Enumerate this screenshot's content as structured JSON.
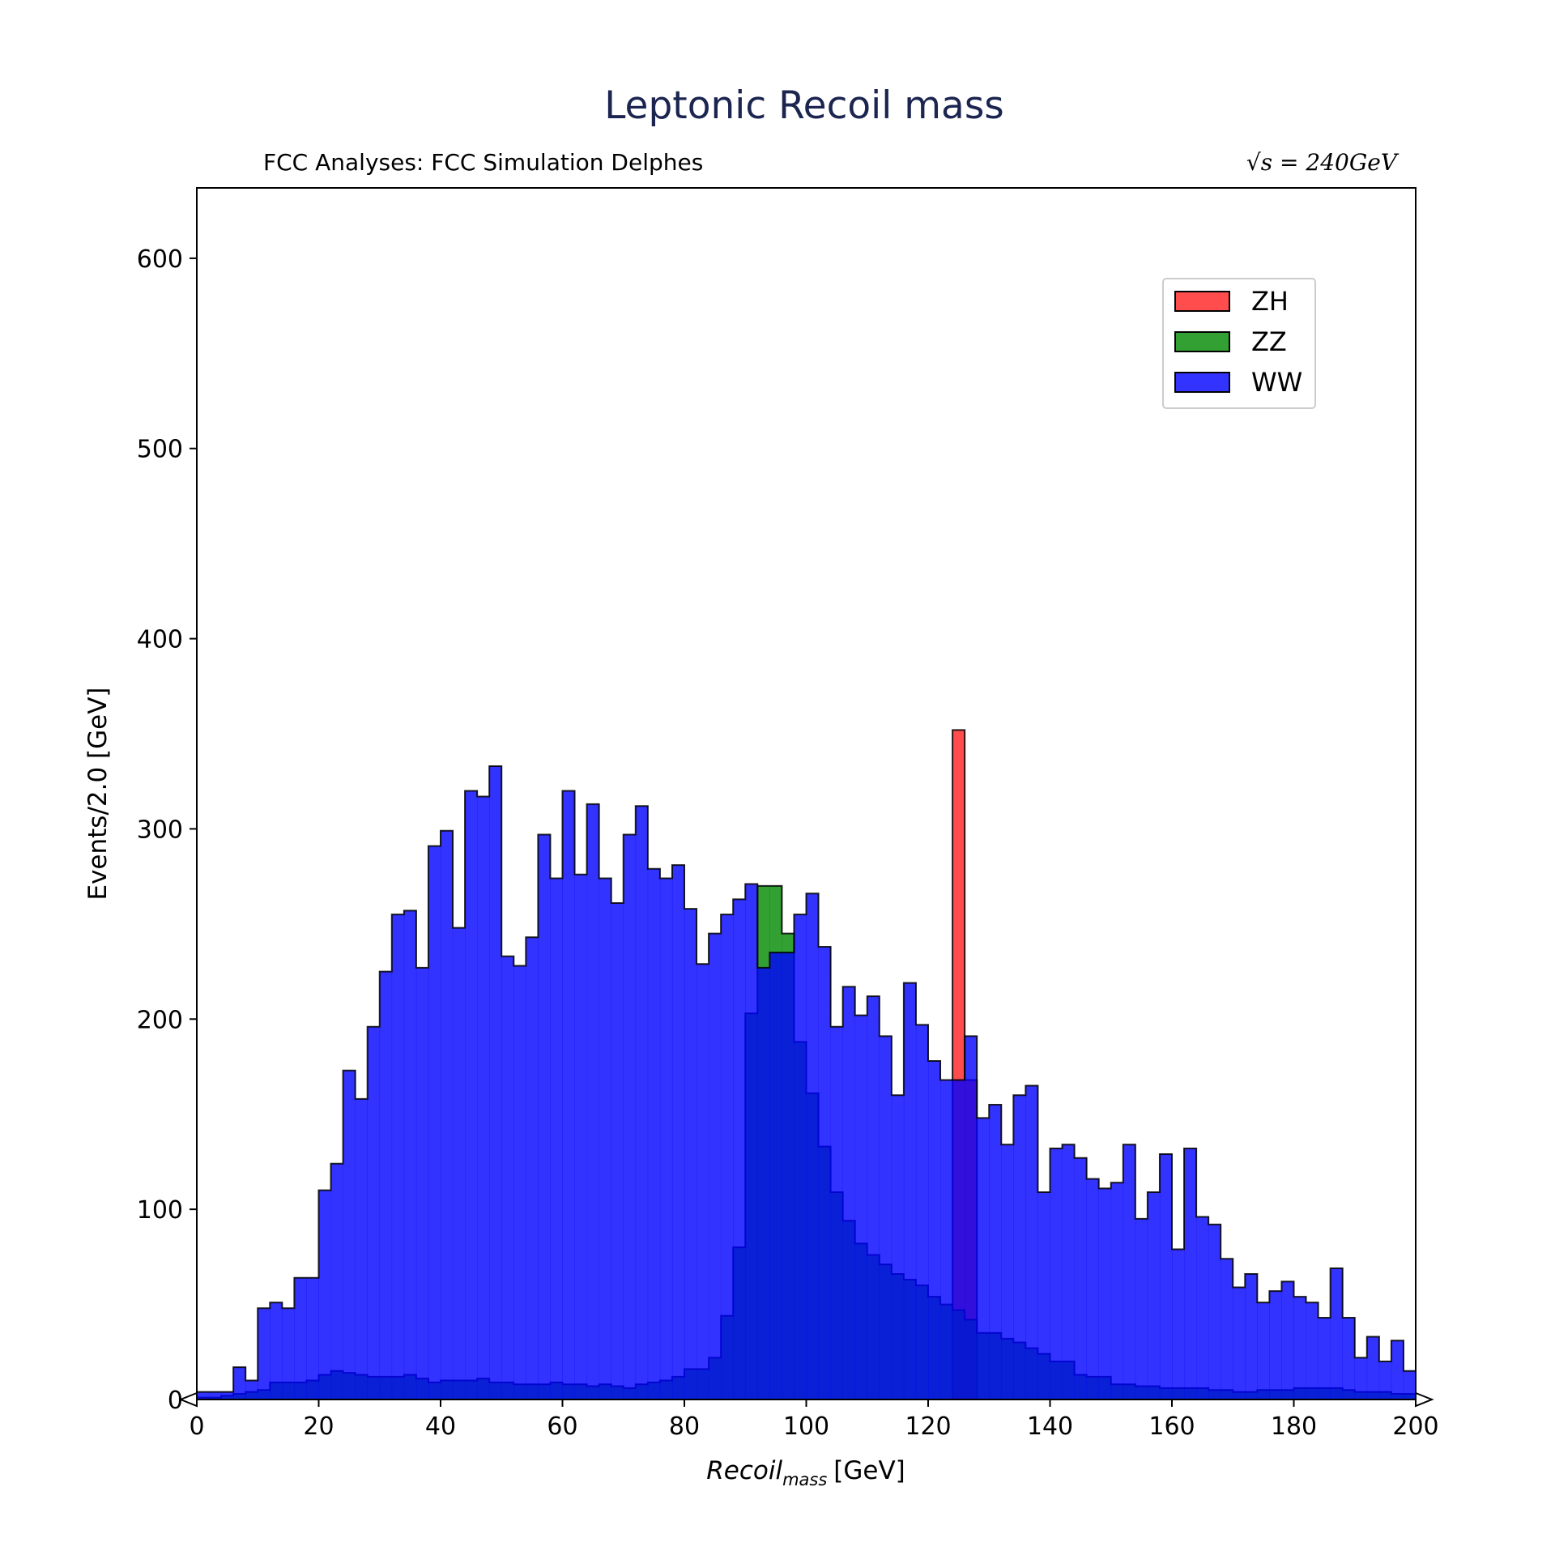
{
  "chart_data": {
    "type": "histogram",
    "title": "Leptonic Recoil mass",
    "subtitle_left": "FCC Analyses: FCC Simulation Delphes",
    "subtitle_right": "√s = 240GeV",
    "xlabel_main": "Recoil",
    "xlabel_sub": "mass",
    "xlabel_unit": "[GeV]",
    "ylabel": "Events/2.0 [GeV]",
    "xlim": [
      0,
      200
    ],
    "ylim": [
      0,
      637
    ],
    "xticks": [
      "0",
      "20",
      "40",
      "60",
      "80",
      "100",
      "120",
      "140",
      "160",
      "180",
      "200"
    ],
    "yticks": [
      "0",
      "100",
      "200",
      "300",
      "400",
      "500",
      "600"
    ],
    "bin_width": 2,
    "legend_position": "upper right",
    "colors": {
      "ZH": "#ff2020",
      "ZZ": "#008800",
      "WW": "#0000ff"
    },
    "series": [
      {
        "name": "WW",
        "x": [
          0,
          2,
          4,
          6,
          8,
          10,
          12,
          14,
          16,
          18,
          20,
          22,
          24,
          26,
          28,
          30,
          32,
          34,
          36,
          38,
          40,
          42,
          44,
          46,
          48,
          50,
          52,
          54,
          56,
          58,
          60,
          62,
          64,
          66,
          68,
          70,
          72,
          74,
          76,
          78,
          80,
          82,
          84,
          86,
          88,
          90,
          92,
          94,
          96,
          98,
          100,
          102,
          104,
          106,
          108,
          110,
          112,
          114,
          116,
          118,
          120,
          122,
          124,
          126,
          128,
          130,
          132,
          134,
          136,
          138,
          140,
          142,
          144,
          146,
          148,
          150,
          152,
          154,
          156,
          158,
          160,
          162,
          164,
          166,
          168,
          170,
          172,
          174,
          176,
          178,
          180,
          182,
          184,
          186,
          188,
          190,
          192,
          194,
          196,
          198
        ],
        "values": [
          4,
          4,
          4,
          17,
          10,
          48,
          51,
          48,
          64,
          64,
          110,
          124,
          173,
          158,
          196,
          225,
          255,
          257,
          227,
          291,
          299,
          248,
          320,
          317,
          333,
          233,
          228,
          243,
          297,
          274,
          320,
          276,
          313,
          274,
          261,
          297,
          312,
          279,
          274,
          281,
          258,
          229,
          245,
          255,
          263,
          271,
          227,
          235,
          235,
          255,
          266,
          238,
          196,
          217,
          202,
          212,
          191,
          160,
          219,
          197,
          178,
          168,
          168,
          191,
          148,
          155,
          134,
          160,
          165,
          109,
          132,
          134,
          127,
          116,
          111,
          114,
          134,
          95,
          109,
          129,
          79,
          132,
          96,
          92,
          74,
          59,
          66,
          51,
          57,
          62,
          54,
          51,
          43,
          69,
          43,
          22,
          33,
          20,
          31,
          15
        ]
      },
      {
        "name": "ZZ",
        "x": [
          0,
          2,
          4,
          6,
          8,
          10,
          12,
          14,
          16,
          18,
          20,
          22,
          24,
          26,
          28,
          30,
          32,
          34,
          36,
          38,
          40,
          42,
          44,
          46,
          48,
          50,
          52,
          54,
          56,
          58,
          60,
          62,
          64,
          66,
          68,
          70,
          72,
          74,
          76,
          78,
          80,
          82,
          84,
          86,
          88,
          90,
          92,
          94,
          96,
          98,
          100,
          102,
          104,
          106,
          108,
          110,
          112,
          114,
          116,
          118,
          120,
          122,
          124,
          126,
          128,
          130,
          132,
          134,
          136,
          138,
          140,
          142,
          144,
          146,
          148,
          150,
          152,
          154,
          156,
          158,
          160,
          162,
          164,
          166,
          168,
          170,
          172,
          174,
          176,
          178,
          180,
          182,
          184,
          186,
          188,
          190,
          192,
          194,
          196,
          198
        ],
        "values": [
          1,
          1,
          2,
          3,
          4,
          5,
          9,
          9,
          9,
          10,
          13,
          15,
          14,
          13,
          12,
          12,
          12,
          13,
          11,
          9,
          10,
          10,
          10,
          11,
          9,
          9,
          8,
          8,
          8,
          9,
          8,
          8,
          7,
          8,
          7,
          6,
          8,
          9,
          10,
          12,
          16,
          16,
          22,
          44,
          80,
          203,
          270,
          270,
          245,
          188,
          161,
          133,
          109,
          94,
          82,
          76,
          71,
          66,
          63,
          60,
          54,
          50,
          47,
          42,
          35,
          35,
          32,
          30,
          27,
          24,
          20,
          20,
          13,
          12,
          12,
          8,
          8,
          7,
          7,
          6,
          6,
          6,
          6,
          5,
          5,
          4,
          4,
          5,
          5,
          5,
          6,
          6,
          6,
          6,
          5,
          4,
          4,
          4,
          3,
          3
        ]
      },
      {
        "name": "ZH",
        "x": [
          124,
          126
        ],
        "values": [
          352,
          168
        ]
      }
    ]
  }
}
